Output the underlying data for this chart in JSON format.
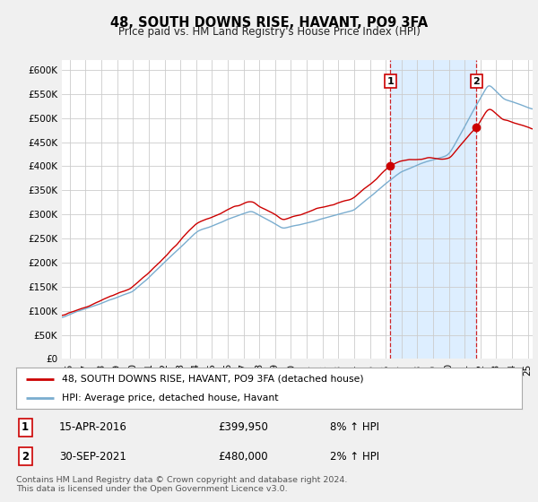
{
  "title": "48, SOUTH DOWNS RISE, HAVANT, PO9 3FA",
  "subtitle": "Price paid vs. HM Land Registry's House Price Index (HPI)",
  "ylim": [
    0,
    620000
  ],
  "yticks": [
    0,
    50000,
    100000,
    150000,
    200000,
    250000,
    300000,
    350000,
    400000,
    450000,
    500000,
    550000,
    600000
  ],
  "xlim_start": 1995.5,
  "xlim_end": 2025.3,
  "sale1_date": 2016.29,
  "sale1_price": 399950,
  "sale2_date": 2021.75,
  "sale2_price": 480000,
  "sale1_text": "15-APR-2016",
  "sale1_price_text": "£399,950",
  "sale1_hpi": "8% ↑ HPI",
  "sale2_text": "30-SEP-2021",
  "sale2_price_text": "£480,000",
  "sale2_hpi": "2% ↑ HPI",
  "legend_line1": "48, SOUTH DOWNS RISE, HAVANT, PO9 3FA (detached house)",
  "legend_line2": "HPI: Average price, detached house, Havant",
  "footer": "Contains HM Land Registry data © Crown copyright and database right 2024.\nThis data is licensed under the Open Government Licence v3.0.",
  "red_color": "#cc0000",
  "blue_color": "#7aadcf",
  "shade_color": "#ddeeff",
  "background_color": "#f0f0f0",
  "plot_bg": "#ffffff",
  "grid_color": "#cccccc"
}
